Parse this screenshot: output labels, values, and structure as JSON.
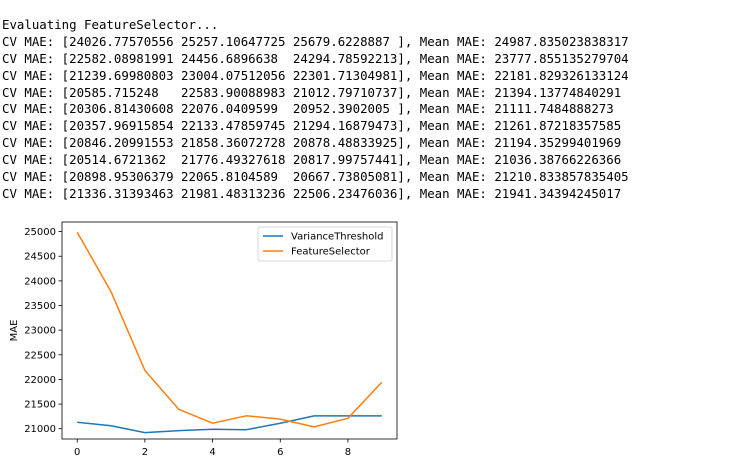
{
  "output": {
    "lines": [
      "Evaluating FeatureSelector...",
      "CV MAE: [24026.77570556 25257.10647725 25679.6228887 ], Mean MAE: 24987.835023838317",
      "CV MAE: [22582.08981991 24456.6896638  24294.78592213], Mean MAE: 23777.855135279704",
      "CV MAE: [21239.69980803 23004.07512056 22301.71304981], Mean MAE: 22181.829326133124",
      "CV MAE: [20585.715248   22583.90088983 21012.79710737], Mean MAE: 21394.13774840291",
      "CV MAE: [20306.81430608 22076.0409599  20952.3902005 ], Mean MAE: 21111.7484888273",
      "CV MAE: [20357.96915854 22133.47859745 21294.16879473], Mean MAE: 21261.87218357585",
      "CV MAE: [20846.20991553 21858.36072728 20878.48833925], Mean MAE: 21194.35299401969",
      "CV MAE: [20514.6721362  21776.49327618 20817.99757441], Mean MAE: 21036.38766226366",
      "CV MAE: [20898.95306379 22065.8104589  20667.73805081], Mean MAE: 21210.833857835405",
      "CV MAE: [21336.31393463 21981.48313236 22506.23476036], Mean MAE: 21941.34394245017"
    ]
  },
  "chart_data": {
    "type": "line",
    "x": [
      0,
      1,
      2,
      3,
      4,
      5,
      6,
      7,
      8,
      9
    ],
    "series": [
      {
        "name": "VarianceThreshold",
        "color": "#1f77b4",
        "values": [
          21130,
          21060,
          20920,
          20960,
          20990,
          20980,
          21110,
          21260,
          21260,
          21260
        ]
      },
      {
        "name": "FeatureSelector",
        "color": "#ff7f0e",
        "values": [
          24987.835023838317,
          23777.855135279704,
          22181.829326133124,
          21394.13774840291,
          21111.7484888273,
          21261.87218357585,
          21194.35299401969,
          21036.38766226366,
          21210.833857835405,
          21941.34394245017
        ]
      }
    ],
    "xticks": [
      "0",
      "2",
      "4",
      "6",
      "8"
    ],
    "yticks": [
      "21000",
      "21500",
      "22000",
      "22500",
      "23000",
      "23500",
      "24000",
      "24500",
      "25000"
    ],
    "title": "",
    "xlabel": "",
    "ylabel": "MAE",
    "xlim": [
      -0.45,
      9.45
    ],
    "ylim": [
      20791,
      25195
    ],
    "grid": false,
    "legend_position": "upper right"
  }
}
